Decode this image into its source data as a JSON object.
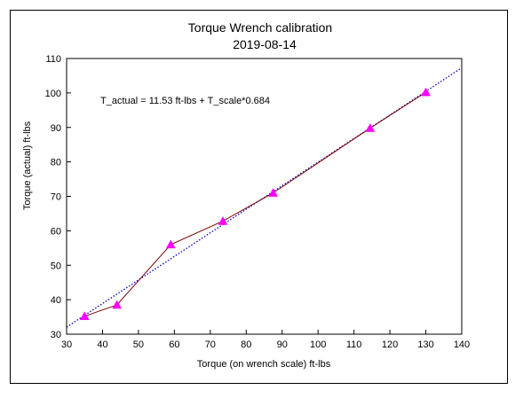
{
  "chart_data": {
    "type": "scatter",
    "title": "Torque Wrench calibration",
    "subtitle": "2019-08-14",
    "xlabel": "Torque (on wrench scale) ft-lbs",
    "ylabel": "Torque (actual) ft-lbs",
    "xlim": [
      30,
      140
    ],
    "ylim": [
      30,
      110
    ],
    "x_ticks": [
      30,
      40,
      50,
      60,
      70,
      80,
      90,
      100,
      110,
      120,
      130,
      140
    ],
    "y_ticks": [
      30,
      40,
      50,
      60,
      70,
      80,
      90,
      100,
      110
    ],
    "grid": false,
    "annotation": "T_actual = 11.53 ft-lbs + T_scale*0.684",
    "series": [
      {
        "points": [
          {
            "x": 35,
            "y": 35.2
          },
          {
            "x": 44,
            "y": 38.5
          },
          {
            "x": 59,
            "y": 56
          },
          {
            "x": 73.5,
            "y": 62.8
          },
          {
            "x": 87.5,
            "y": 71
          },
          {
            "x": 114.5,
            "y": 89.8
          },
          {
            "x": 130,
            "y": 100.2
          }
        ],
        "marker": "triangle",
        "marker_color": "#ff00ff",
        "line_color": "#800000"
      }
    ],
    "fit_line": {
      "intercept": 11.53,
      "slope": 0.684,
      "x_range": [
        30,
        140
      ],
      "style": "dotted",
      "color": "#0000cc"
    }
  }
}
